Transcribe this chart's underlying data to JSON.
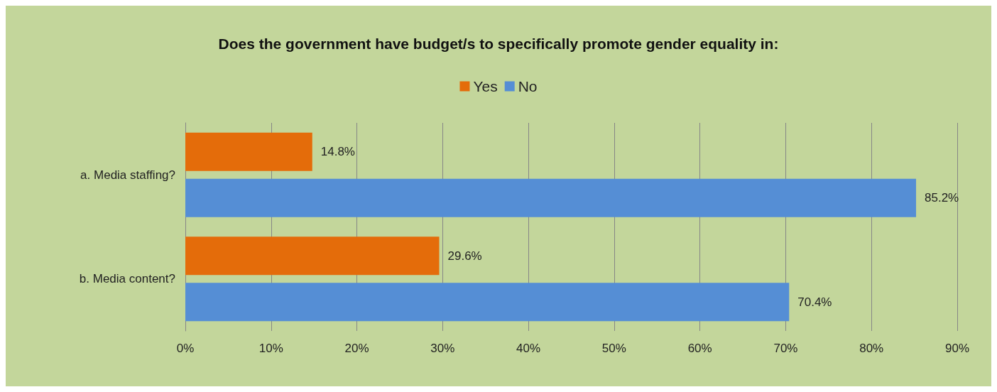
{
  "chart_data": {
    "type": "bar",
    "orientation": "horizontal",
    "title": "Does the government have budget/s to specifically promote gender equality in:",
    "categories": [
      "a. Media staffing?",
      "b. Media content?"
    ],
    "series": [
      {
        "name": "Yes",
        "color": "#e46c0a",
        "values": [
          14.8,
          29.6
        ],
        "value_labels": [
          "14.8%",
          "29.6%"
        ]
      },
      {
        "name": "No",
        "color": "#558ed5",
        "values": [
          85.2,
          70.4
        ],
        "value_labels": [
          "85.2%",
          "70.4%"
        ]
      }
    ],
    "xlim": [
      0,
      90
    ],
    "xticks": [
      {
        "value": 0,
        "label": "0%"
      },
      {
        "value": 10,
        "label": "10%"
      },
      {
        "value": 20,
        "label": "20%"
      },
      {
        "value": 30,
        "label": "30%"
      },
      {
        "value": 40,
        "label": "40%"
      },
      {
        "value": 50,
        "label": "50%"
      },
      {
        "value": 60,
        "label": "60%"
      },
      {
        "value": 70,
        "label": "70%"
      },
      {
        "value": 80,
        "label": "80%"
      },
      {
        "value": 90,
        "label": "90%"
      }
    ],
    "grid": "x",
    "legend": "top"
  }
}
